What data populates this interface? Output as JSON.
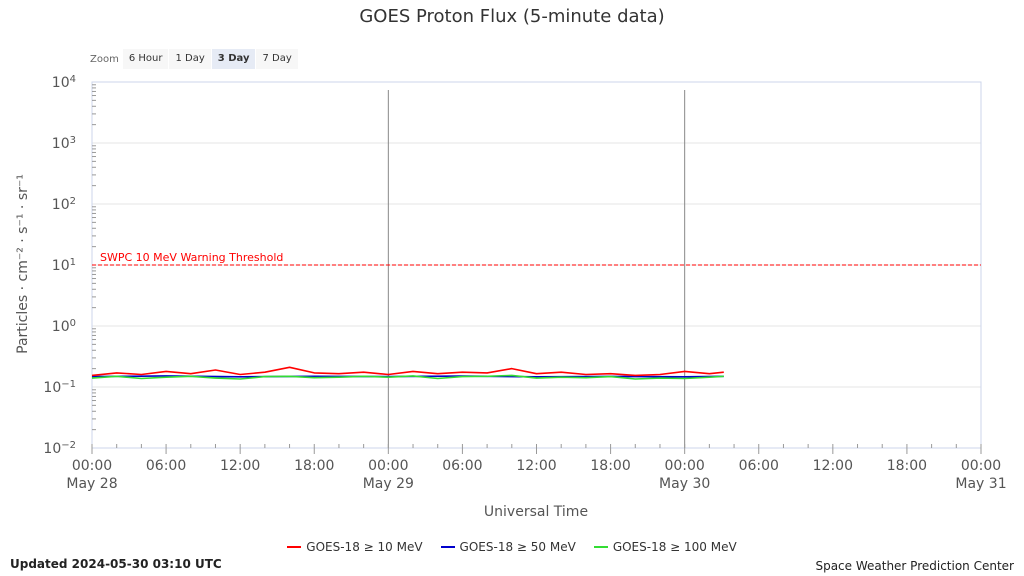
{
  "title": "GOES Proton Flux (5-minute data)",
  "zoom": {
    "label": "Zoom",
    "buttons": [
      "6 Hour",
      "1 Day",
      "3 Day",
      "7 Day"
    ],
    "selected": "3 Day"
  },
  "updated": "Updated 2024-05-30 03:10 UTC",
  "credit": "Space Weather Prediction Center",
  "colors": {
    "threshold": "#ff0000",
    "gridline": "#e6e6e6",
    "axis": "#ccd6eb",
    "day_line": "#888888"
  },
  "chart_data": {
    "type": "line",
    "ylabel": "Particles · cm⁻² · s⁻¹ · sr⁻¹",
    "xlabel": "Universal Time",
    "yscale": "log",
    "ylim": [
      0.01,
      10000
    ],
    "y_ticks": [
      {
        "base": "10",
        "exp": "4",
        "value": 10000
      },
      {
        "base": "10",
        "exp": "3",
        "value": 1000
      },
      {
        "base": "10",
        "exp": "2",
        "value": 100
      },
      {
        "base": "10",
        "exp": "1",
        "value": 10
      },
      {
        "base": "10",
        "exp": "0",
        "value": 1
      },
      {
        "base": "10",
        "exp": "−1",
        "value": 0.1
      },
      {
        "base": "10",
        "exp": "−2",
        "value": 0.01
      }
    ],
    "xlim": [
      "2024-05-28 00:00",
      "2024-05-31 00:00"
    ],
    "x_ticks": [
      {
        "time": "00:00",
        "date": "May 28",
        "t": "2024-05-28 00:00"
      },
      {
        "time": "06:00",
        "date": "",
        "t": "2024-05-28 06:00"
      },
      {
        "time": "12:00",
        "date": "",
        "t": "2024-05-28 12:00"
      },
      {
        "time": "18:00",
        "date": "",
        "t": "2024-05-28 18:00"
      },
      {
        "time": "00:00",
        "date": "May 29",
        "t": "2024-05-29 00:00"
      },
      {
        "time": "06:00",
        "date": "",
        "t": "2024-05-29 06:00"
      },
      {
        "time": "12:00",
        "date": "",
        "t": "2024-05-29 12:00"
      },
      {
        "time": "18:00",
        "date": "",
        "t": "2024-05-29 18:00"
      },
      {
        "time": "00:00",
        "date": "May 30",
        "t": "2024-05-30 00:00"
      },
      {
        "time": "06:00",
        "date": "",
        "t": "2024-05-30 06:00"
      },
      {
        "time": "12:00",
        "date": "",
        "t": "2024-05-30 12:00"
      },
      {
        "time": "18:00",
        "date": "",
        "t": "2024-05-30 18:00"
      },
      {
        "time": "00:00",
        "date": "May 31",
        "t": "2024-05-31 00:00"
      }
    ],
    "day_lines": [
      "2024-05-29 00:00",
      "2024-05-30 00:00"
    ],
    "threshold": {
      "label": "SWPC 10 MeV Warning Threshold",
      "value": 10
    },
    "series": [
      {
        "name": "GOES-18 ≥ 10 MeV",
        "color": "#ff0000",
        "x": [
          "2024-05-28 00:00",
          "2024-05-28 02:00",
          "2024-05-28 04:00",
          "2024-05-28 06:00",
          "2024-05-28 08:00",
          "2024-05-28 10:00",
          "2024-05-28 12:00",
          "2024-05-28 14:00",
          "2024-05-28 16:00",
          "2024-05-28 18:00",
          "2024-05-28 20:00",
          "2024-05-28 22:00",
          "2024-05-29 00:00",
          "2024-05-29 02:00",
          "2024-05-29 04:00",
          "2024-05-29 06:00",
          "2024-05-29 08:00",
          "2024-05-29 10:00",
          "2024-05-29 12:00",
          "2024-05-29 14:00",
          "2024-05-29 16:00",
          "2024-05-29 18:00",
          "2024-05-29 20:00",
          "2024-05-29 22:00",
          "2024-05-30 00:00",
          "2024-05-30 02:00",
          "2024-05-30 03:10"
        ],
        "values": [
          0.155,
          0.17,
          0.16,
          0.18,
          0.165,
          0.19,
          0.16,
          0.175,
          0.21,
          0.17,
          0.165,
          0.175,
          0.16,
          0.18,
          0.165,
          0.175,
          0.17,
          0.2,
          0.165,
          0.175,
          0.16,
          0.165,
          0.155,
          0.16,
          0.18,
          0.165,
          0.175
        ]
      },
      {
        "name": "GOES-18 ≥ 50 MeV",
        "color": "#0000cc",
        "x": [
          "2024-05-28 00:00",
          "2024-05-28 06:00",
          "2024-05-28 12:00",
          "2024-05-28 18:00",
          "2024-05-29 00:00",
          "2024-05-29 06:00",
          "2024-05-29 12:00",
          "2024-05-29 18:00",
          "2024-05-30 00:00",
          "2024-05-30 03:10"
        ],
        "values": [
          0.148,
          0.152,
          0.147,
          0.15,
          0.148,
          0.151,
          0.147,
          0.149,
          0.147,
          0.15
        ]
      },
      {
        "name": "GOES-18 ≥ 100 MeV",
        "color": "#33dd33",
        "x": [
          "2024-05-28 00:00",
          "2024-05-28 02:00",
          "2024-05-28 04:00",
          "2024-05-28 06:00",
          "2024-05-28 08:00",
          "2024-05-28 10:00",
          "2024-05-28 12:00",
          "2024-05-28 14:00",
          "2024-05-28 16:00",
          "2024-05-28 18:00",
          "2024-05-28 20:00",
          "2024-05-28 22:00",
          "2024-05-29 00:00",
          "2024-05-29 02:00",
          "2024-05-29 04:00",
          "2024-05-29 06:00",
          "2024-05-29 08:00",
          "2024-05-29 10:00",
          "2024-05-29 12:00",
          "2024-05-29 14:00",
          "2024-05-29 16:00",
          "2024-05-29 18:00",
          "2024-05-29 20:00",
          "2024-05-29 22:00",
          "2024-05-30 00:00",
          "2024-05-30 02:00",
          "2024-05-30 03:10"
        ],
        "values": [
          0.14,
          0.15,
          0.138,
          0.145,
          0.15,
          0.14,
          0.135,
          0.148,
          0.15,
          0.142,
          0.145,
          0.15,
          0.145,
          0.152,
          0.138,
          0.148,
          0.15,
          0.155,
          0.14,
          0.145,
          0.142,
          0.148,
          0.135,
          0.14,
          0.138,
          0.145,
          0.15
        ]
      }
    ]
  }
}
